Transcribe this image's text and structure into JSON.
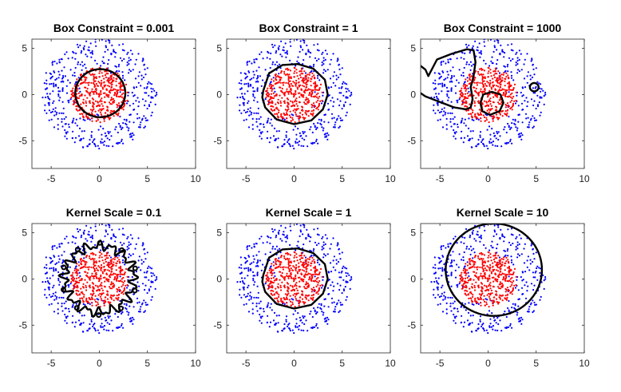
{
  "chart_data": [
    {
      "type": "scatter",
      "title": "Box Constraint = 0.001",
      "xlim": [
        -7,
        10
      ],
      "ylim": [
        -8,
        6
      ],
      "xticks": [
        -5,
        0,
        5,
        10
      ],
      "yticks": [
        -5,
        0,
        5
      ],
      "boundary": [
        {
          "kind": "circle",
          "center": [
            0.1,
            0.15
          ],
          "radius": 2.6
        }
      ]
    },
    {
      "type": "scatter",
      "title": "Box Constraint = 1",
      "xlim": [
        -7,
        10
      ],
      "ylim": [
        -8,
        6
      ],
      "xticks": [
        -5,
        0,
        5,
        10
      ],
      "yticks": [
        -5,
        0,
        5
      ],
      "boundary": [
        {
          "kind": "polyline",
          "closed": true,
          "points": [
            [
              -3.2,
              0.4
            ],
            [
              -2.6,
              2.3
            ],
            [
              -1.2,
              3.2
            ],
            [
              0.4,
              3.3
            ],
            [
              2,
              2.8
            ],
            [
              3.2,
              1.6
            ],
            [
              3.5,
              0
            ],
            [
              3,
              -1.6
            ],
            [
              1.8,
              -2.8
            ],
            [
              0,
              -3.2
            ],
            [
              -1.8,
              -2.7
            ],
            [
              -3,
              -1.4
            ],
            [
              -3.3,
              -0.3
            ]
          ]
        }
      ]
    },
    {
      "type": "scatter",
      "title": "Box Constraint = 1000",
      "xlim": [
        -7,
        10
      ],
      "ylim": [
        -8,
        6
      ],
      "xticks": [
        -5,
        0,
        5,
        10
      ],
      "yticks": [
        -5,
        0,
        5
      ],
      "boundary": [
        {
          "kind": "polyline",
          "closed": false,
          "points": [
            [
              -7.5,
              3.5
            ],
            [
              -6.5,
              2.7
            ],
            [
              -6.2,
              2
            ],
            [
              -5.3,
              3.8
            ],
            [
              -3.8,
              4.4
            ],
            [
              -2.2,
              4.9
            ],
            [
              -1.5,
              4.8
            ],
            [
              -1.3,
              3.5
            ],
            [
              -1.5,
              2
            ],
            [
              -1.8,
              0.8
            ],
            [
              -1.6,
              -0.5
            ],
            [
              -1.8,
              -1.4
            ],
            [
              -2.3,
              -1.6
            ],
            [
              -3.5,
              -1.4
            ],
            [
              -5,
              -0.8
            ],
            [
              -6.5,
              -0.2
            ],
            [
              -7.5,
              0.5
            ]
          ]
        },
        {
          "kind": "polyline",
          "closed": true,
          "points": [
            [
              -0.8,
              -0.9
            ],
            [
              -0.5,
              0
            ],
            [
              0.4,
              0.3
            ],
            [
              1.3,
              0
            ],
            [
              1.6,
              -0.9
            ],
            [
              1.2,
              -1.8
            ],
            [
              0.2,
              -2.2
            ],
            [
              -0.6,
              -1.8
            ]
          ]
        },
        {
          "kind": "circle",
          "center": [
            4.8,
            0.8
          ],
          "radius": 0.45
        }
      ]
    },
    {
      "type": "scatter",
      "title": "Kernel Scale = 0.1",
      "xlim": [
        -7,
        10
      ],
      "ylim": [
        -8,
        6
      ],
      "xticks": [
        -5,
        0,
        5,
        10
      ],
      "yticks": [
        -5,
        0,
        5
      ],
      "boundary": [
        {
          "kind": "wiggly",
          "center": [
            0,
            0
          ],
          "radius": 3.6
        }
      ]
    },
    {
      "type": "scatter",
      "title": "Kernel Scale = 1",
      "xlim": [
        -7,
        10
      ],
      "ylim": [
        -8,
        6
      ],
      "xticks": [
        -5,
        0,
        5,
        10
      ],
      "yticks": [
        -5,
        0,
        5
      ],
      "boundary": [
        {
          "kind": "polyline",
          "closed": true,
          "points": [
            [
              -3.2,
              0.4
            ],
            [
              -2.6,
              2.3
            ],
            [
              -1.2,
              3.2
            ],
            [
              0.4,
              3.3
            ],
            [
              2,
              2.8
            ],
            [
              3.2,
              1.6
            ],
            [
              3.5,
              0
            ],
            [
              3,
              -1.6
            ],
            [
              1.8,
              -2.8
            ],
            [
              0,
              -3.2
            ],
            [
              -1.8,
              -2.7
            ],
            [
              -3,
              -1.4
            ],
            [
              -3.3,
              -0.3
            ]
          ]
        }
      ]
    },
    {
      "type": "scatter",
      "title": "Kernel Scale = 10",
      "xlim": [
        -7,
        10
      ],
      "ylim": [
        -8,
        6
      ],
      "xticks": [
        -5,
        0,
        5,
        10
      ],
      "yticks": [
        -5,
        0,
        5
      ],
      "boundary": [
        {
          "kind": "circle",
          "center": [
            0.6,
            1.0
          ],
          "radius": 5.0
        }
      ]
    }
  ],
  "colors": {
    "inner": "#ff0000",
    "outer": "#0000ff",
    "boundary": "#000000",
    "axes": "#262626"
  },
  "points": {
    "inner_count": 430,
    "outer_count": 430,
    "inner_radius_max": 3,
    "outer_radius_min": 2,
    "outer_radius_max": 6,
    "seed": 7
  }
}
